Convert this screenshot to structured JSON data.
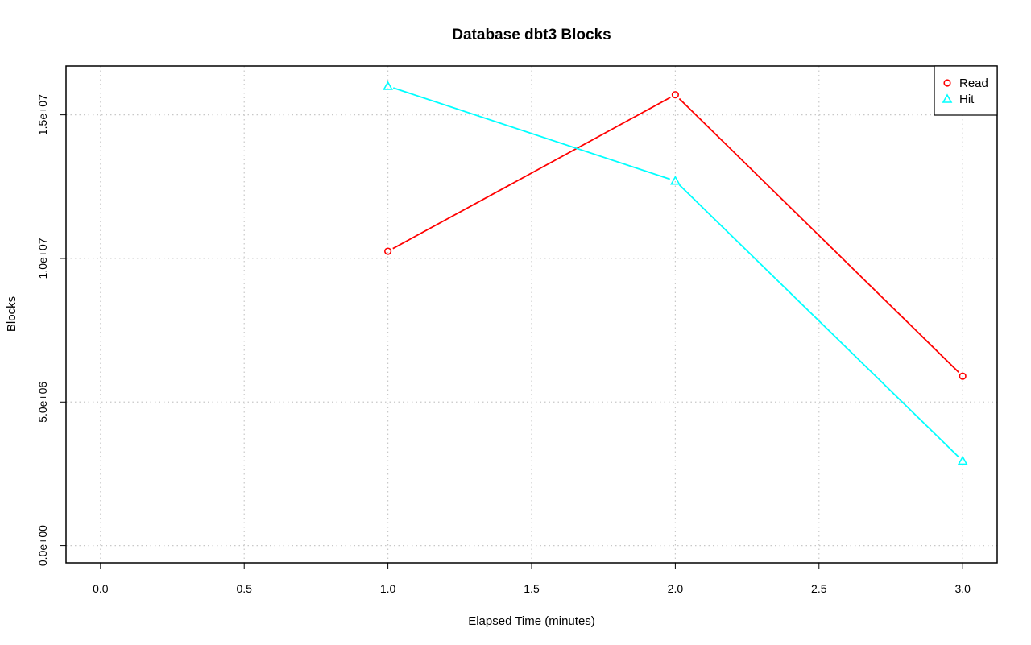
{
  "chart_data": {
    "type": "line",
    "title": "Database dbt3 Blocks",
    "xlabel": "Elapsed Time (minutes)",
    "ylabel": "Blocks",
    "xlim": [
      -0.12,
      3.12
    ],
    "ylim": [
      -600000,
      16700000
    ],
    "x_ticks": [
      0.0,
      0.5,
      1.0,
      1.5,
      2.0,
      2.5,
      3.0
    ],
    "x_tick_labels": [
      "0.0",
      "0.5",
      "1.0",
      "1.5",
      "2.0",
      "2.5",
      "3.0"
    ],
    "y_ticks": [
      0,
      5000000,
      10000000,
      15000000
    ],
    "y_tick_labels": [
      "0.0e+00",
      "5.0e+06",
      "1.0e+07",
      "1.5e+07"
    ],
    "grid": true,
    "legend_position": "top-right",
    "series": [
      {
        "name": "Read",
        "color": "#ff0000",
        "marker": "circle",
        "x": [
          1,
          2,
          3
        ],
        "values": [
          10250000,
          15700000,
          5900000
        ]
      },
      {
        "name": "Hit",
        "color": "#00ffff",
        "marker": "triangle",
        "x": [
          1,
          2,
          3
        ],
        "values": [
          16000000,
          12700000,
          2950000
        ]
      }
    ]
  }
}
